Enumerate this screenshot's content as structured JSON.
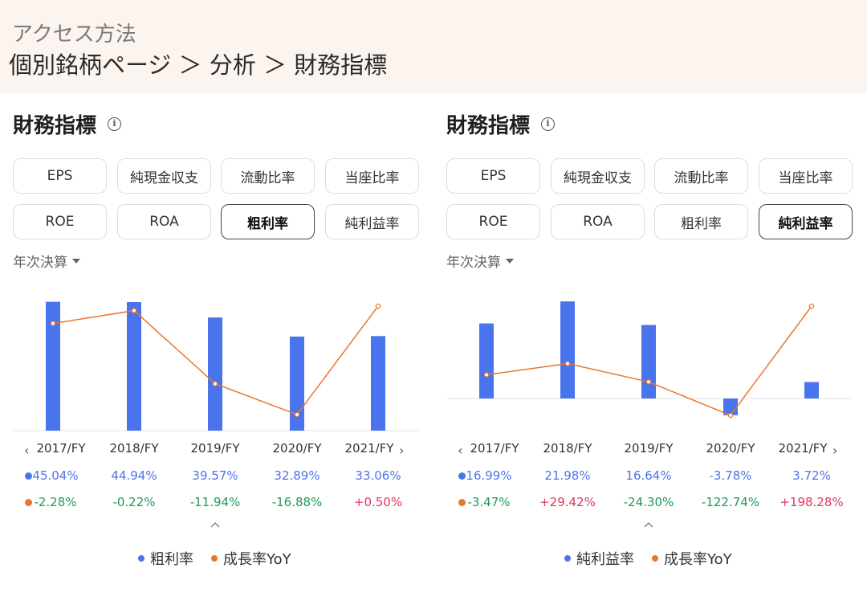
{
  "header": {
    "subtitle": "アクセス方法",
    "breadcrumb": "個別銘柄ページ ＞ 分析 ＞ 財務指標"
  },
  "colors": {
    "bar": "#4a74ed",
    "line": "#e8772e",
    "positive": "#e0355d",
    "negative": "#1f9a55"
  },
  "panels": [
    {
      "title": "財務指標",
      "metrics": [
        "EPS",
        "純現金収支",
        "流動比率",
        "当座比率",
        "ROE",
        "ROA",
        "粗利率",
        "純利益率"
      ],
      "selected_metric": "粗利率",
      "period": "年次決算",
      "years": [
        "2017/FY",
        "2018/FY",
        "2019/FY",
        "2020/FY",
        "2021/FY"
      ],
      "values_text": [
        "45.04%",
        "44.94%",
        "39.57%",
        "32.89%",
        "33.06%"
      ],
      "growth_text": [
        "-2.28%",
        "-0.22%",
        "-11.94%",
        "-16.88%",
        "+0.50%"
      ],
      "legend": {
        "bar_label": "粗利率",
        "line_label": "成長率YoY"
      }
    },
    {
      "title": "財務指標",
      "metrics": [
        "EPS",
        "純現金収支",
        "流動比率",
        "当座比率",
        "ROE",
        "ROA",
        "粗利率",
        "純利益率"
      ],
      "selected_metric": "純利益率",
      "period": "年次決算",
      "years": [
        "2017/FY",
        "2018/FY",
        "2019/FY",
        "2020/FY",
        "2021/FY"
      ],
      "values_text": [
        "16.99%",
        "21.98%",
        "16.64%",
        "-3.78%",
        "3.72%"
      ],
      "growth_text": [
        "-3.47%",
        "+29.42%",
        "-24.30%",
        "-122.74%",
        "+198.28%"
      ],
      "legend": {
        "bar_label": "純利益率",
        "line_label": "成長率YoY"
      }
    }
  ],
  "chart_data": [
    {
      "type": "bar",
      "categories": [
        "2017/FY",
        "2018/FY",
        "2019/FY",
        "2020/FY",
        "2021/FY"
      ],
      "series": [
        {
          "name": "粗利率",
          "type": "bar",
          "values": [
            45.04,
            44.94,
            39.57,
            32.89,
            33.06
          ]
        },
        {
          "name": "成長率YoY",
          "type": "line",
          "values": [
            -2.28,
            -0.22,
            -11.94,
            -16.88,
            0.5
          ]
        }
      ]
    },
    {
      "type": "bar",
      "categories": [
        "2017/FY",
        "2018/FY",
        "2019/FY",
        "2020/FY",
        "2021/FY"
      ],
      "series": [
        {
          "name": "純利益率",
          "type": "bar",
          "values": [
            16.99,
            21.98,
            16.64,
            -3.78,
            3.72
          ]
        },
        {
          "name": "成長率YoY",
          "type": "line",
          "values": [
            -3.47,
            29.42,
            -24.3,
            -122.74,
            198.28
          ]
        }
      ]
    }
  ]
}
